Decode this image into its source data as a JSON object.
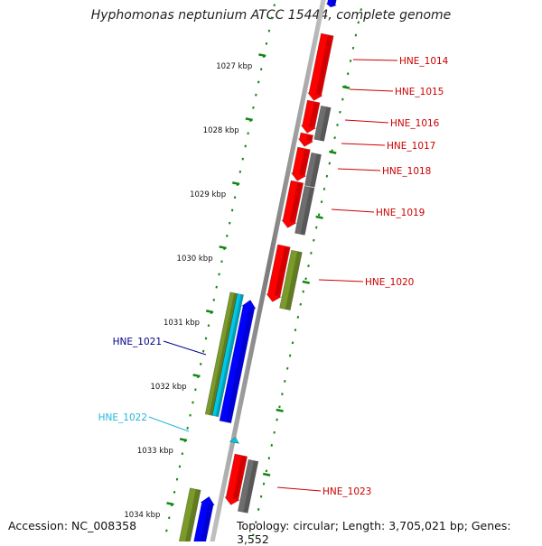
{
  "title": "Hyphomonas neptunium ATCC 15444, complete genome",
  "accession_text": "Accession: NC_008358",
  "topology_text": "Topology: circular; Length: 3,705,021 bp; Genes: 3,552",
  "kbp_labels": [
    "1027 kbp",
    "1028 kbp",
    "1029 kbp",
    "1030 kbp",
    "1031 kbp",
    "1032 kbp",
    "1033 kbp",
    "1034 kbp"
  ],
  "genes": [
    {
      "name": "HNE_1014",
      "strand": "reverse",
      "color": "#ff0000"
    },
    {
      "name": "HNE_1015",
      "strand": "reverse",
      "color": "#ff0000"
    },
    {
      "name": "HNE_1016",
      "strand": "reverse",
      "color": "#ff0000"
    },
    {
      "name": "HNE_1017",
      "strand": "reverse",
      "color": "#ff0000"
    },
    {
      "name": "HNE_1018",
      "strand": "reverse",
      "color": "#ff0000"
    },
    {
      "name": "HNE_1019",
      "strand": "reverse",
      "color": "#ff0000"
    },
    {
      "name": "HNE_1020",
      "strand": "reverse",
      "color": "#ff0000"
    },
    {
      "name": "HNE_1021",
      "strand": "forward",
      "color": "#0000ff"
    },
    {
      "name": "HNE_1022",
      "strand": "forward",
      "color": "#00c8e6"
    },
    {
      "name": "HNE_1023",
      "strand": "reverse",
      "color": "#ff0000"
    }
  ],
  "colors": {
    "cds": "#ff0000",
    "cds_forward": "#0000ff",
    "rna": "#00c8e6",
    "cog": "#7a9a2a",
    "cog_unassigned": "#6e6e6e",
    "backbone": "#8c8c8c",
    "ticks": "#118811",
    "label_reverse": "#cc0000",
    "label_forward": "#00008b",
    "label_rna": "#20b8d8"
  }
}
